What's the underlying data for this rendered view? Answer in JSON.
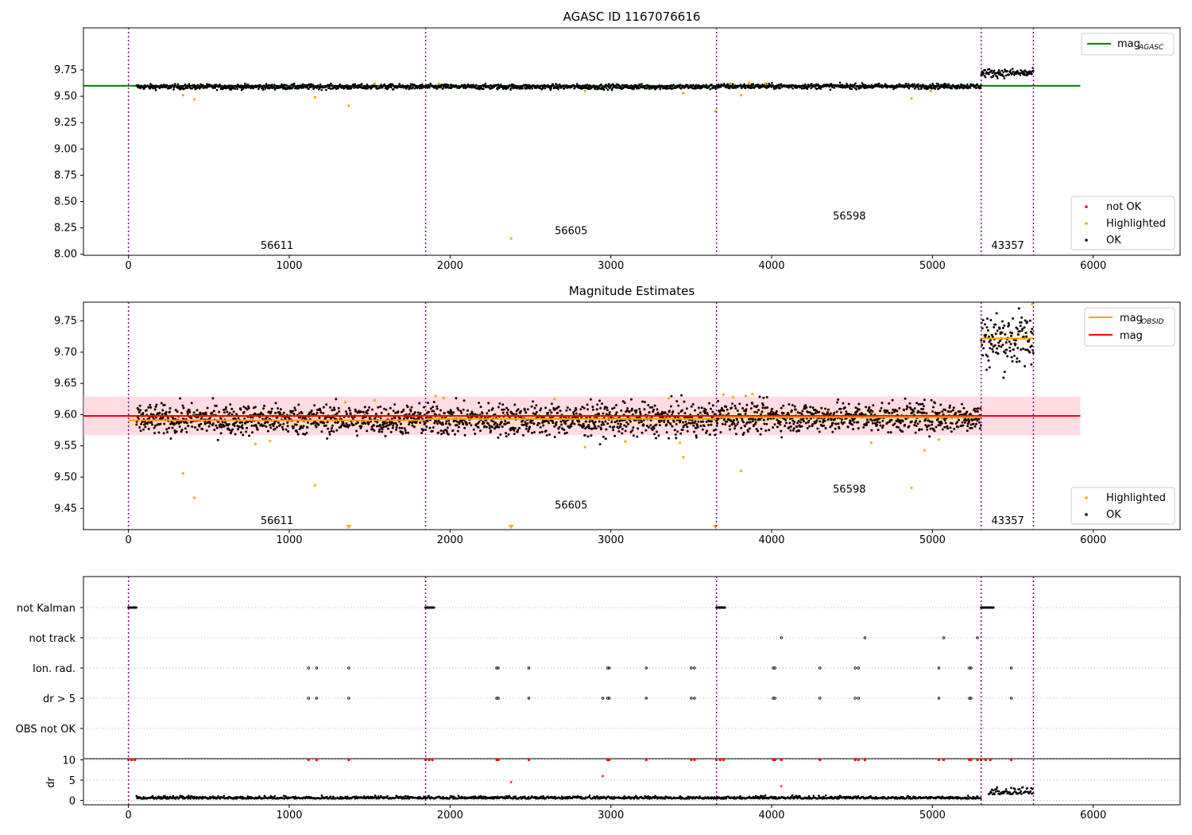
{
  "colors": {
    "ok": "#000000",
    "highlighted": "#ffa500",
    "not_ok": "#ff0000",
    "mag_agasc": "#008000",
    "mag": "#ff0000",
    "mag_obsid": "#ffa500",
    "mag_band": "#ffc0cb",
    "obs_boundary": "#800080",
    "flag_grid": "#b0b0b0"
  },
  "chart_data": [
    {
      "type": "scatter",
      "title": "AGASC ID 1167076616",
      "xlim": [
        -280,
        6540
      ],
      "ylim": [
        7.99,
        10.15
      ],
      "x_ticks": [
        "0",
        "1000",
        "2000",
        "3000",
        "4000",
        "5000",
        "6000"
      ],
      "y_ticks": [
        "8.00",
        "8.25",
        "8.50",
        "8.75",
        "9.00",
        "9.25",
        "9.50",
        "9.75"
      ],
      "observation_boundaries": [
        0,
        1848,
        3657,
        5303,
        5628
      ],
      "observation_labels": [
        {
          "text": "56611",
          "x": 920,
          "y": 8.08
        },
        {
          "text": "56605",
          "x": 2750,
          "y": 8.22
        },
        {
          "text": "56598",
          "x": 4480,
          "y": 8.36
        },
        {
          "text": "43357",
          "x": 5465,
          "y": 8.08
        }
      ],
      "lines": [
        {
          "name": "mag",
          "sub": "AGASC",
          "value": 9.6,
          "x_range": [
            -280,
            5920
          ]
        }
      ],
      "segments": [
        {
          "x": [
            50,
            1848
          ],
          "level": 9.59,
          "spread": 0.012
        },
        {
          "x": [
            1848,
            3657
          ],
          "level": 9.59,
          "spread": 0.012
        },
        {
          "x": [
            3657,
            5303
          ],
          "level": 9.595,
          "spread": 0.012
        },
        {
          "x": [
            5303,
            5628
          ],
          "level": 9.72,
          "spread": 0.02
        }
      ],
      "highlighted_points": [
        [
          340,
          9.51
        ],
        [
          410,
          9.47
        ],
        [
          1160,
          9.49
        ],
        [
          1370,
          9.41
        ],
        [
          1530,
          9.62
        ],
        [
          2380,
          8.15
        ],
        [
          2840,
          9.55
        ],
        [
          3450,
          9.53
        ],
        [
          3650,
          9.36
        ],
        [
          3810,
          9.51
        ],
        [
          4870,
          9.48
        ],
        [
          4990,
          9.55
        ],
        [
          1930,
          9.62
        ],
        [
          3740,
          9.62
        ],
        [
          3860,
          9.63
        ],
        [
          3960,
          9.62
        ]
      ],
      "legends": [
        {
          "position": "top-right",
          "entries": [
            {
              "label": "mag",
              "sub": "AGASC",
              "kind": "line"
            }
          ]
        },
        {
          "position": "bottom-right",
          "entries": [
            {
              "label": "not OK",
              "kind": "point"
            },
            {
              "label": "Highlighted",
              "kind": "point"
            },
            {
              "label": "OK",
              "kind": "point"
            }
          ]
        }
      ]
    },
    {
      "type": "scatter",
      "title": "Magnitude Estimates",
      "xlim": [
        -280,
        6540
      ],
      "ylim": [
        9.416,
        9.78
      ],
      "x_ticks": [
        "0",
        "1000",
        "2000",
        "3000",
        "4000",
        "5000",
        "6000"
      ],
      "y_ticks": [
        "9.45",
        "9.50",
        "9.55",
        "9.60",
        "9.65",
        "9.70",
        "9.75"
      ],
      "observation_boundaries": [
        0,
        1848,
        3657,
        5303,
        5628
      ],
      "observation_labels": [
        {
          "text": "56611",
          "x": 920,
          "y": 9.43
        },
        {
          "text": "56605",
          "x": 2750,
          "y": 9.455
        },
        {
          "text": "56598",
          "x": 4480,
          "y": 9.48
        },
        {
          "text": "43357",
          "x": 5465,
          "y": 9.43
        }
      ],
      "lines": [
        {
          "name": "mag",
          "value": 9.598,
          "band": [
            9.567,
            9.629
          ],
          "x_range": [
            -280,
            5920
          ]
        }
      ],
      "obsid_levels": [
        {
          "x": [
            0,
            1848
          ],
          "value": 9.591
        },
        {
          "x": [
            1848,
            3657
          ],
          "value": 9.593
        },
        {
          "x": [
            3657,
            5303
          ],
          "value": 9.596
        },
        {
          "x": [
            5303,
            5628
          ],
          "value": 9.722
        }
      ],
      "segments": [
        {
          "x": [
            50,
            1848
          ],
          "level": 9.592,
          "spread": 0.012
        },
        {
          "x": [
            1848,
            3657
          ],
          "level": 9.592,
          "spread": 0.013
        },
        {
          "x": [
            3657,
            5303
          ],
          "level": 9.596,
          "spread": 0.012
        },
        {
          "x": [
            5303,
            5628
          ],
          "level": 9.72,
          "spread": 0.022
        }
      ],
      "highlighted_points": [
        [
          340,
          9.506
        ],
        [
          410,
          9.467
        ],
        [
          790,
          9.553
        ],
        [
          880,
          9.558
        ],
        [
          1160,
          9.487
        ],
        [
          1350,
          9.62
        ],
        [
          1530,
          9.623
        ],
        [
          1910,
          9.63
        ],
        [
          1960,
          9.627
        ],
        [
          2650,
          9.625
        ],
        [
          2840,
          9.548
        ],
        [
          3090,
          9.557
        ],
        [
          3360,
          9.626
        ],
        [
          3430,
          9.555
        ],
        [
          3450,
          9.532
        ],
        [
          3810,
          9.51
        ],
        [
          3700,
          9.632
        ],
        [
          3760,
          9.628
        ],
        [
          3840,
          9.63
        ],
        [
          3880,
          9.633
        ],
        [
          4620,
          9.555
        ],
        [
          4950,
          9.543
        ],
        [
          4870,
          9.483
        ],
        [
          5040,
          9.56
        ],
        [
          5620,
          9.777
        ]
      ],
      "below_range_markers": [
        1370,
        2380,
        3650
      ],
      "legends": [
        {
          "position": "top-right",
          "entries": [
            {
              "label": "mag",
              "sub": "OBSID",
              "kind": "line"
            },
            {
              "label": "mag",
              "kind": "line"
            }
          ]
        },
        {
          "position": "bottom-right",
          "entries": [
            {
              "label": "Highlighted",
              "kind": "point"
            },
            {
              "label": "OK",
              "kind": "point"
            }
          ]
        }
      ]
    },
    {
      "type": "scatter",
      "title": "",
      "xlim": [
        -280,
        6540
      ],
      "x_ticks": [
        "0",
        "1000",
        "2000",
        "3000",
        "4000",
        "5000",
        "6000"
      ],
      "observation_boundaries": [
        0,
        1848,
        3657,
        5303,
        5628
      ],
      "flag_categories": [
        "not Kalman",
        "not track",
        "Ion. rad.",
        "dr > 5",
        "OBS not OK"
      ],
      "flags": {
        "not Kalman": [
          [
            0,
            50
          ],
          [
            1848,
            1900
          ],
          [
            3657,
            3710
          ],
          [
            5303,
            5380
          ]
        ],
        "not track": [
          4060,
          4580,
          5070,
          5280
        ],
        "Ion. rad.": [
          1120,
          1170,
          1370,
          2290,
          2300,
          2490,
          2980,
          2990,
          3220,
          3500,
          3520,
          4010,
          4020,
          4300,
          4520,
          4540,
          5040,
          5230,
          5240,
          5490
        ],
        "dr > 5": [
          1120,
          1170,
          1370,
          2290,
          2300,
          2490,
          2950,
          2980,
          2990,
          3220,
          3500,
          3520,
          4010,
          4020,
          4300,
          4520,
          4540,
          5040,
          5230,
          5240,
          5490
        ],
        "OBS not OK": []
      },
      "dr_panel": {
        "ylabel": "dr",
        "ylim": [
          -0.5,
          10.3
        ],
        "y_ticks": [
          "0",
          "5",
          "10"
        ],
        "clipped_value": 10,
        "clipped_x": [
          0,
          20,
          40,
          1120,
          1170,
          1370,
          1848,
          1870,
          1890,
          2290,
          2300,
          2490,
          2980,
          2990,
          3220,
          3500,
          3520,
          3657,
          3680,
          3700,
          4010,
          4020,
          4060,
          4300,
          4520,
          4540,
          4580,
          5040,
          5070,
          5230,
          5240,
          5280,
          5303,
          5330,
          5360,
          5490
        ],
        "outliers": [
          [
            2380,
            4.5
          ],
          [
            2950,
            6.0
          ],
          [
            4060,
            3.5
          ]
        ],
        "baseline_segments": [
          {
            "x": [
              50,
              1848
            ],
            "level": 0.4,
            "spread": 0.3
          },
          {
            "x": [
              1848,
              3657
            ],
            "level": 0.4,
            "spread": 0.3
          },
          {
            "x": [
              3657,
              5303
            ],
            "level": 0.4,
            "spread": 0.3
          },
          {
            "x": [
              5350,
              5628
            ],
            "level": 1.5,
            "spread": 0.8
          }
        ]
      }
    }
  ]
}
